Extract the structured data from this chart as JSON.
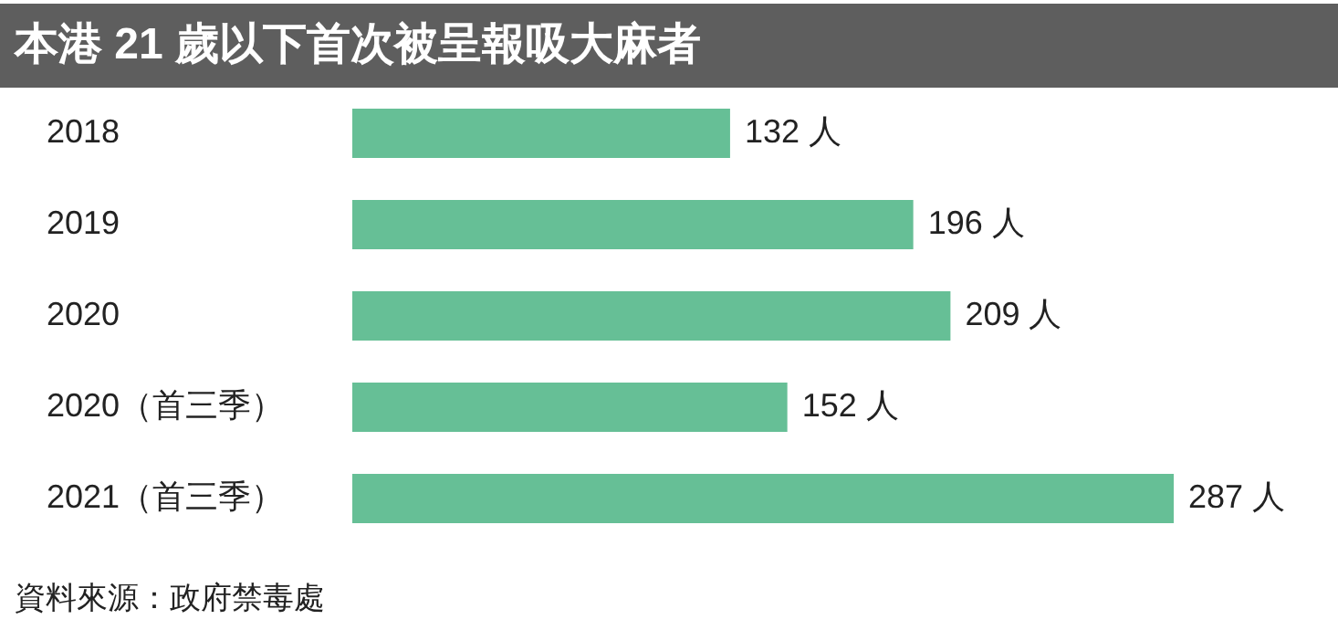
{
  "chart_data": {
    "type": "bar",
    "orientation": "horizontal",
    "title": "本港 21 歲以下首次被呈報吸大麻者",
    "categories": [
      "2018",
      "2019",
      "2020",
      "2020（首三季）",
      "2021（首三季）"
    ],
    "values": [
      132,
      196,
      209,
      152,
      287
    ],
    "value_labels": [
      "132 人",
      "196 人",
      "209 人",
      "152 人",
      "287 人"
    ],
    "color": "#66bf96",
    "annotations": [
      "資料來源：政府禁毒處"
    ]
  }
}
